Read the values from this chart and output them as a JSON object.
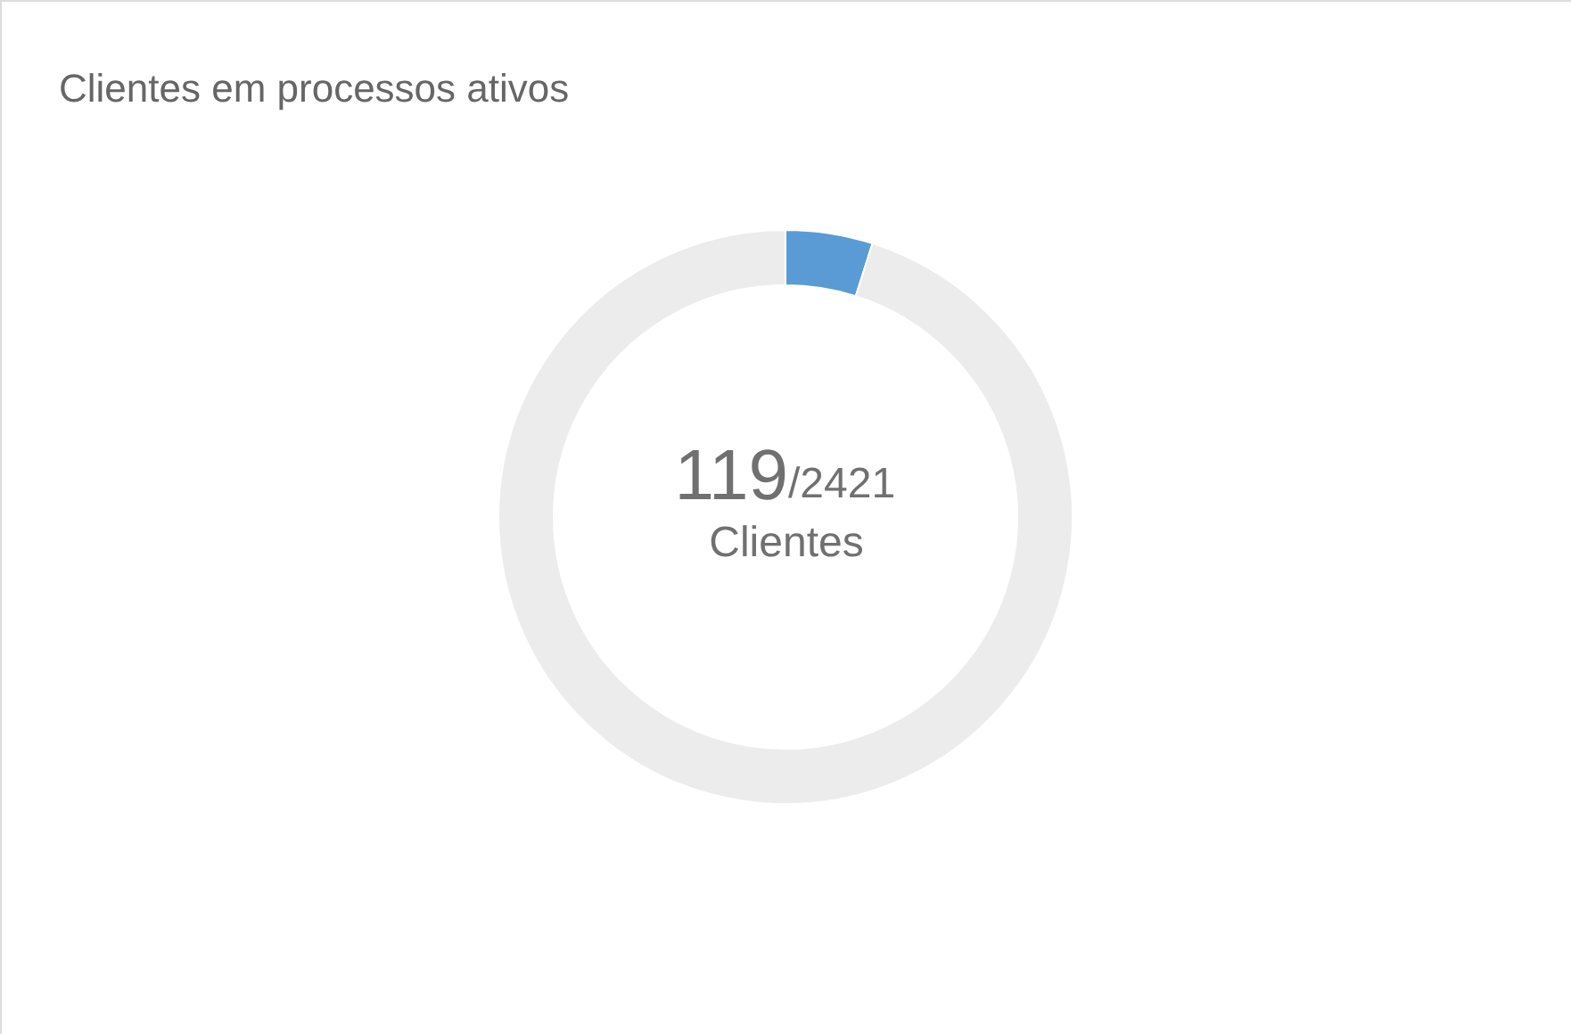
{
  "chart_data": {
    "type": "donut",
    "title": "Clientes em processos ativos",
    "categories": [
      null,
      null
    ],
    "values": [
      4.9,
      95.1
    ],
    "colors": [
      "#5b9bd5",
      "#ececec"
    ],
    "annotations": [
      "119",
      "/2421",
      "Clientes"
    ]
  }
}
